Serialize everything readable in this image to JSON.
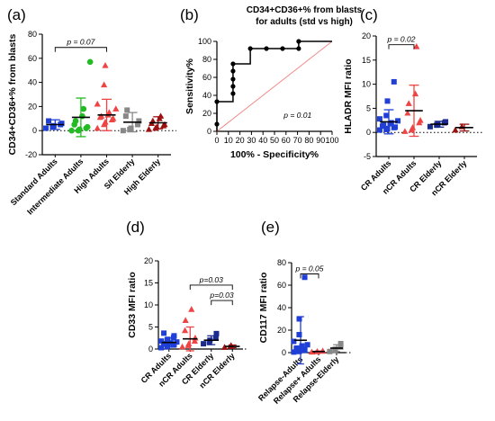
{
  "chart_data": [
    {
      "panel": "(a)",
      "type": "scatter",
      "ylabel": "CD34+CD36+% from blasts",
      "ylim": [
        -20,
        80
      ],
      "yticks": [
        -20,
        0,
        20,
        40,
        60,
        80
      ],
      "categories": [
        "Standard Adults",
        "Intermediate Adults",
        "High Adults",
        "S/I Elderly",
        "High Elderly"
      ],
      "colors": [
        "#1f3fd6",
        "#22bb22",
        "#ee4444",
        "#888888",
        "#9b1111"
      ],
      "markers": [
        "square",
        "circle",
        "triangle",
        "square",
        "triangle"
      ],
      "mean": [
        5,
        11,
        13,
        7,
        6.5
      ],
      "sd": [
        4,
        16,
        13,
        8,
        5
      ],
      "points": [
        [
          2,
          3,
          4,
          5,
          6,
          8
        ],
        [
          0,
          0,
          1,
          2,
          3,
          5,
          8,
          12,
          18,
          57
        ],
        [
          2,
          5,
          7,
          9,
          10,
          11,
          12,
          13,
          15,
          18,
          22,
          38,
          54
        ],
        [
          0,
          1,
          2,
          5,
          8,
          12,
          17
        ],
        [
          1,
          2,
          3,
          4,
          5,
          6,
          8,
          10,
          12
        ]
      ],
      "annotations": [
        {
          "text": "p = 0.07",
          "from": "Standard Adults",
          "to": "High Adults"
        }
      ]
    },
    {
      "panel": "(b)",
      "type": "line",
      "title": "CD34+CD36+% from blasts for adults (std vs high)",
      "xlabel": "100% - Specificity%",
      "ylabel": "Sensitivity%",
      "xlim": [
        0,
        100
      ],
      "ylim": [
        0,
        100
      ],
      "xticks": [
        0,
        10,
        20,
        30,
        40,
        50,
        60,
        70,
        80,
        90,
        100
      ],
      "yticks": [
        0,
        20,
        40,
        60,
        80,
        100
      ],
      "roc_points": [
        [
          0,
          0
        ],
        [
          0,
          8
        ],
        [
          0,
          33
        ],
        [
          14,
          33
        ],
        [
          14,
          42
        ],
        [
          14,
          50
        ],
        [
          14,
          58
        ],
        [
          14,
          67
        ],
        [
          14,
          75
        ],
        [
          29,
          75
        ],
        [
          29,
          92
        ],
        [
          43,
          92
        ],
        [
          57,
          92
        ],
        [
          71,
          92
        ],
        [
          71,
          100
        ],
        [
          100,
          100
        ]
      ],
      "annotations": [
        "p = 0.01"
      ]
    },
    {
      "panel": "(c)",
      "type": "scatter",
      "ylabel": "HLADR MFI ratio",
      "ylim": [
        -5,
        20
      ],
      "yticks": [
        -5,
        0,
        5,
        10,
        15,
        20
      ],
      "categories": [
        "CR Adults",
        "nCR Adults",
        "CR Elderly",
        "nCR Elderly"
      ],
      "colors": [
        "#1f3fd6",
        "#ee4444",
        "#1a2a8f",
        "#9b1111"
      ],
      "markers": [
        "square",
        "triangle",
        "square",
        "triangle"
      ],
      "mean": [
        2.2,
        4.5,
        1.7,
        1.0
      ],
      "sd": [
        2.5,
        5.3,
        0.6,
        0.7
      ],
      "points": [
        [
          0.5,
          0.6,
          0.8,
          1.0,
          1.1,
          1.3,
          1.5,
          1.8,
          2.0,
          2.4,
          2.8,
          3.5,
          6.5,
          10.5
        ],
        [
          0.2,
          0.5,
          1.0,
          2.0,
          2.5,
          4.0,
          6.0,
          8.0,
          17.8
        ],
        [
          1.2,
          1.5,
          1.7,
          2.0,
          2.2
        ],
        [
          0.5,
          1.2
        ]
      ],
      "annotations": [
        {
          "text": "p = 0.02",
          "from": "CR Adults",
          "to": "nCR Adults"
        }
      ]
    },
    {
      "panel": "(d)",
      "type": "scatter",
      "ylabel": "CD33 MFI ratio",
      "ylim": [
        0,
        20
      ],
      "yticks": [
        0,
        5,
        10,
        15,
        20
      ],
      "categories": [
        "CR Adults",
        "nCR Adults",
        "CR Elderly",
        "nCR Elderly"
      ],
      "colors": [
        "#1f3fd6",
        "#ee4444",
        "#1a2a8f",
        "#9b1111"
      ],
      "markers": [
        "square",
        "triangle",
        "square",
        "triangle"
      ],
      "mean": [
        1.5,
        2.3,
        2.0,
        0.6
      ],
      "sd": [
        1.0,
        2.7,
        1.0,
        0.3
      ],
      "points": [
        [
          0.3,
          0.5,
          0.7,
          0.9,
          1.0,
          1.1,
          1.2,
          1.3,
          1.4,
          1.6,
          1.8,
          2.0,
          2.2,
          2.6,
          3.0,
          3.6
        ],
        [
          0.5,
          0.8,
          1.2,
          1.8,
          2.5,
          4.2,
          6.5,
          9.0
        ],
        [
          1.2,
          1.5,
          2.0,
          2.5,
          3.5
        ],
        [
          0.4,
          0.6,
          0.8
        ]
      ],
      "annotations": [
        {
          "text": "p=0.03",
          "from": "nCR Adults",
          "to": "nCR Elderly"
        },
        {
          "text": "p=0.03",
          "from": "CR Elderly",
          "to": "nCR Elderly"
        }
      ]
    },
    {
      "panel": "(e)",
      "type": "scatter",
      "ylabel": "CD117 MFI ratio",
      "ylim": [
        0,
        80
      ],
      "yticks": [
        0,
        20,
        40,
        60,
        80
      ],
      "categories": [
        "Relapse-Adults",
        "Relapse+ Adults",
        "Relapse-Elderly"
      ],
      "colors": [
        "#1f3fd6",
        "#ee4444",
        "#888888"
      ],
      "markers": [
        "square",
        "triangle",
        "square"
      ],
      "mean": [
        11,
        1,
        4
      ],
      "sd": [
        21,
        0.5,
        3
      ],
      "points": [
        [
          0.5,
          1,
          1.5,
          2,
          2.5,
          3,
          4,
          5,
          6,
          7,
          10,
          16,
          30,
          67
        ],
        [
          0.5,
          0.8,
          1.0,
          1.2,
          1.5
        ],
        [
          1,
          2,
          3,
          5,
          8
        ]
      ],
      "annotations": [
        {
          "text": "p = 0.05",
          "from": "Relapse-Adults",
          "to": "Relapse+ Adults"
        }
      ]
    }
  ]
}
